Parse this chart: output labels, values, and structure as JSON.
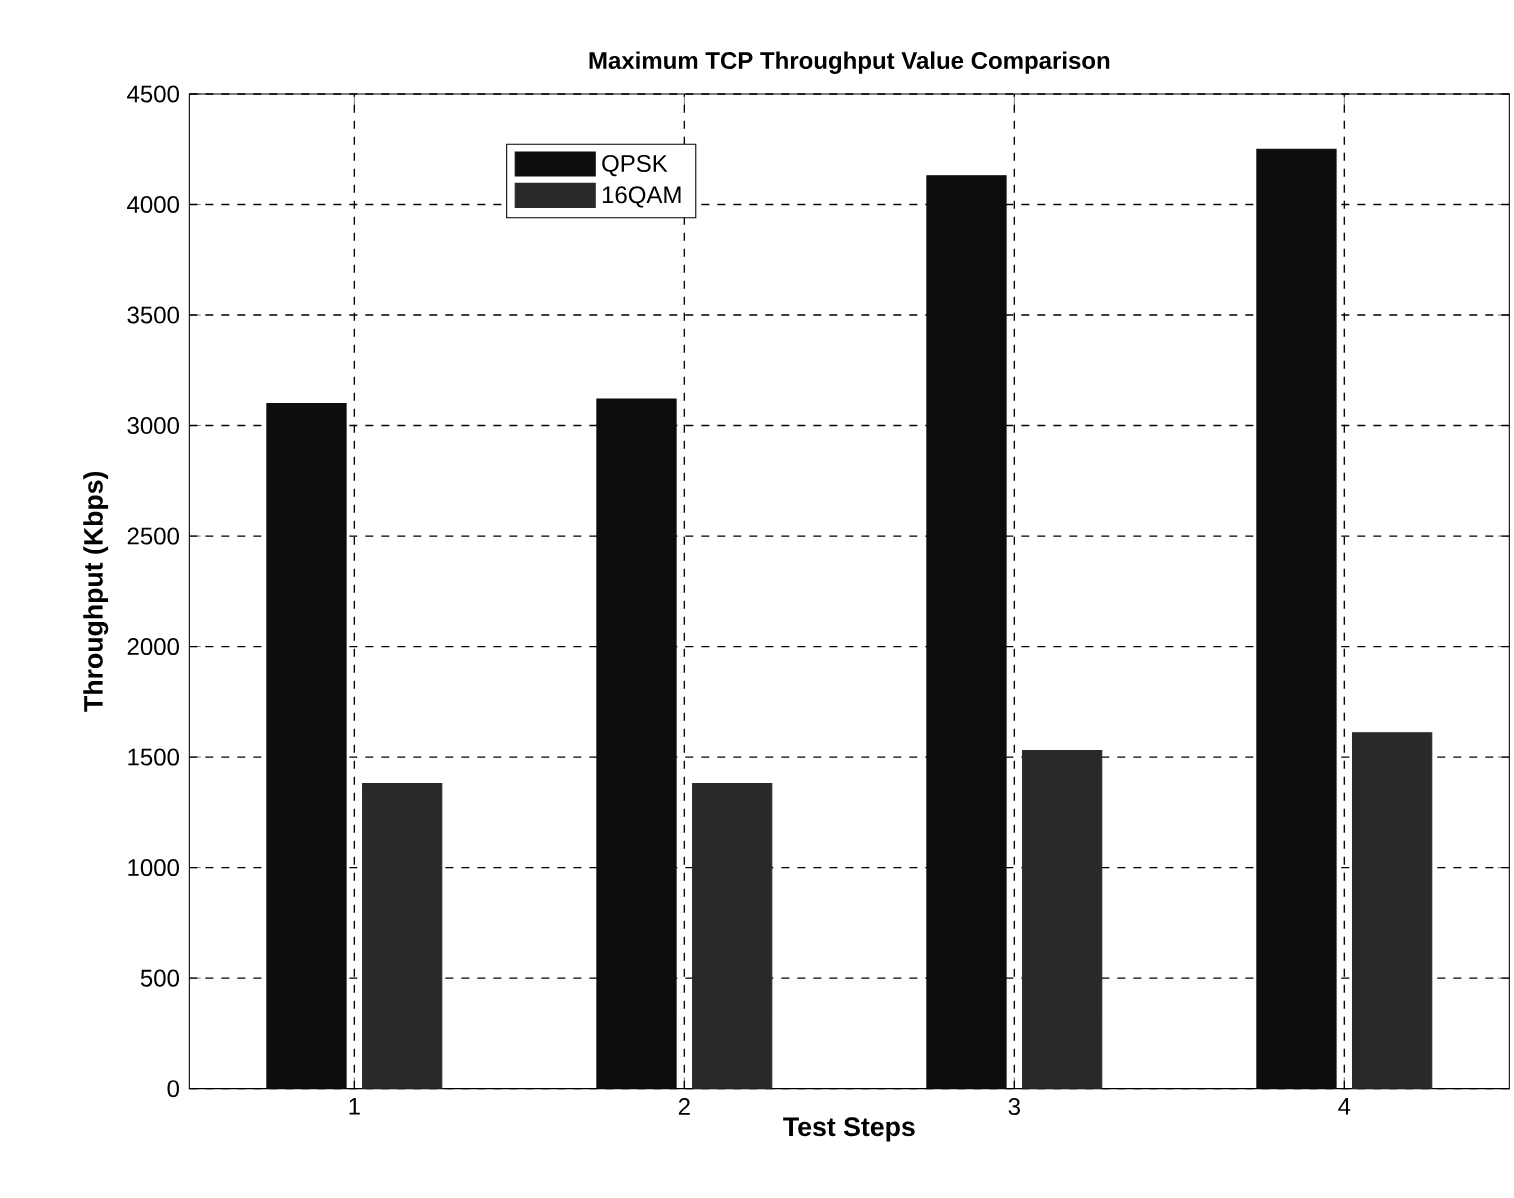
{
  "chart_data": {
    "type": "bar",
    "title": "Maximum TCP Throughput Value Comparison",
    "xlabel": "Test Steps",
    "ylabel": "Throughput (Kbps)",
    "x": [
      1,
      2,
      3,
      4
    ],
    "xlim": [
      0.5,
      4.5
    ],
    "xticks": [
      1,
      2,
      3,
      4
    ],
    "ylim": [
      0,
      4500
    ],
    "yticks": [
      0,
      500,
      1000,
      1500,
      2000,
      2500,
      3000,
      3500,
      4000,
      4500
    ],
    "series": [
      {
        "name": "QPSK",
        "color": "#0d0d0d",
        "values": [
          3100,
          3120,
          4130,
          4250
        ]
      },
      {
        "name": "16QAM",
        "color": "#292929",
        "values": [
          1380,
          1380,
          1530,
          1610
        ]
      }
    ],
    "grid": true,
    "legend": "top left"
  }
}
